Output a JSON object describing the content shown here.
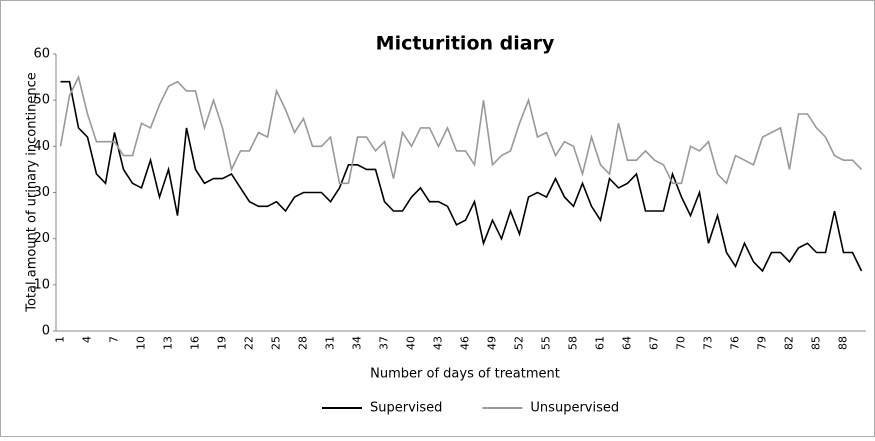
{
  "chart_data": {
    "type": "line",
    "title": "Micturition diary",
    "x_label": "Number of days of treatment",
    "y_label": "Total amount of urinary incontinence",
    "categories": [
      1,
      null,
      null,
      4,
      null,
      null,
      7,
      null,
      null,
      10,
      null,
      null,
      13,
      null,
      null,
      16,
      null,
      null,
      19,
      null,
      null,
      22,
      null,
      null,
      25,
      null,
      null,
      28,
      null,
      null,
      31,
      null,
      null,
      34,
      null,
      null,
      37,
      null,
      null,
      40,
      null,
      null,
      43,
      null,
      null,
      46,
      null,
      null,
      49,
      null,
      null,
      52,
      null,
      null,
      55,
      null,
      null,
      58,
      null,
      null,
      61,
      null,
      null,
      64,
      null,
      null,
      67,
      null,
      null,
      70,
      null,
      null,
      73,
      null,
      null,
      76,
      null,
      null,
      79,
      null,
      null,
      82,
      null,
      null,
      85,
      null,
      null,
      88,
      null,
      null
    ],
    "series": [
      {
        "name": "Supervised",
        "color": "#000000",
        "values": [
          54,
          54,
          44,
          42,
          34,
          32,
          43,
          35,
          32,
          31,
          37,
          29,
          35,
          25,
          44,
          35,
          32,
          33,
          33,
          34,
          31,
          28,
          27,
          27,
          28,
          26,
          29,
          30,
          30,
          30,
          28,
          31,
          36,
          36,
          35,
          35,
          28,
          26,
          26,
          29,
          31,
          28,
          28,
          27,
          23,
          24,
          28,
          19,
          24,
          20,
          26,
          21,
          29,
          30,
          29,
          33,
          29,
          27,
          32,
          27,
          24,
          33,
          31,
          32,
          34,
          26,
          26,
          26,
          34,
          29,
          25,
          30,
          19,
          25,
          17,
          14,
          19,
          15,
          13,
          17,
          17,
          15,
          18,
          19,
          17,
          17,
          26,
          17,
          17,
          13
        ]
      },
      {
        "name": "Unsupervised",
        "color": "#999999",
        "values": [
          40,
          51,
          55,
          47,
          41,
          41,
          41,
          38,
          38,
          45,
          44,
          49,
          53,
          54,
          52,
          52,
          44,
          50,
          44,
          35,
          39,
          39,
          43,
          42,
          52,
          48,
          43,
          46,
          40,
          40,
          42,
          32,
          32,
          42,
          42,
          39,
          41,
          33,
          43,
          40,
          44,
          44,
          40,
          44,
          39,
          39,
          36,
          50,
          36,
          38,
          39,
          45,
          50,
          42,
          43,
          38,
          41,
          40,
          34,
          42,
          36,
          34,
          45,
          37,
          37,
          39,
          37,
          36,
          32,
          32,
          40,
          39,
          41,
          34,
          32,
          38,
          37,
          36,
          42,
          43,
          44,
          35,
          47,
          47,
          44,
          42,
          38,
          37,
          37,
          35
        ]
      }
    ],
    "ylim": [
      0,
      60
    ],
    "yticks": [
      0,
      10,
      20,
      30,
      40,
      50,
      60
    ],
    "legend": "bottom"
  }
}
